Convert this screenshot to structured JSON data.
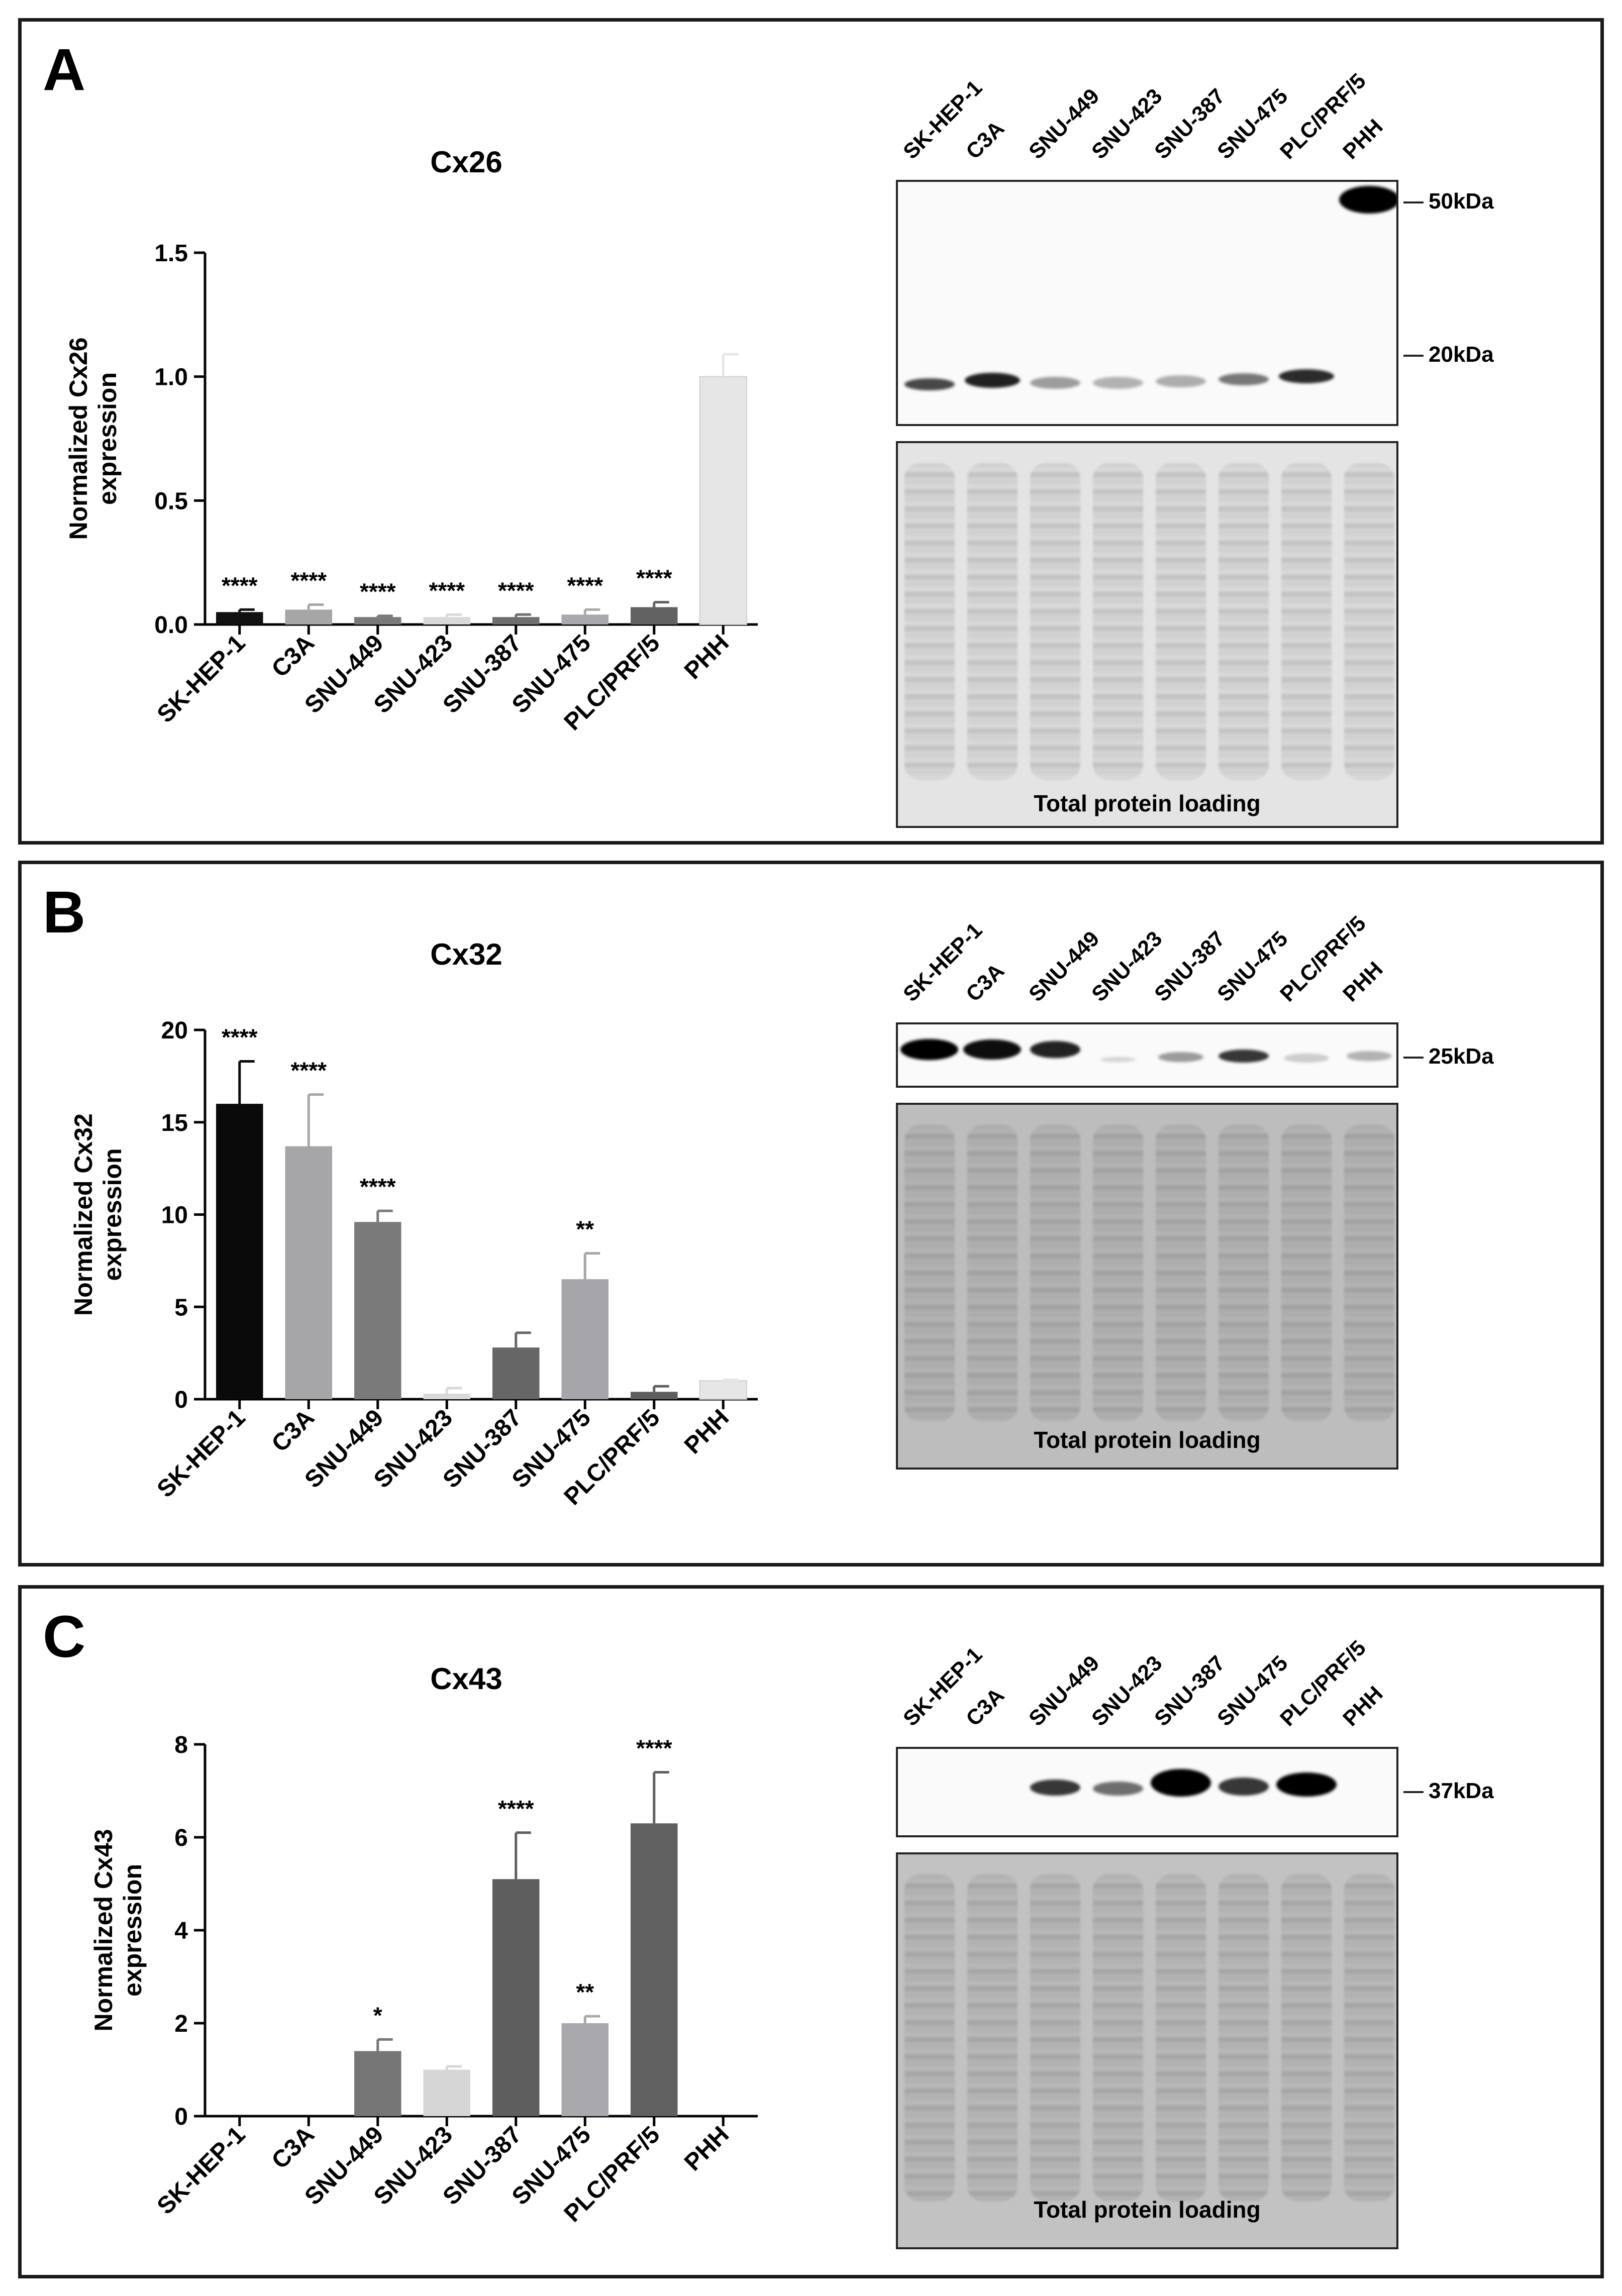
{
  "panels": [
    {
      "letter": "A",
      "blot": {
        "lanes": [
          "SK-HEP-1",
          "C3A",
          "SNU-449",
          "SNU-423",
          "SNU-387",
          "SNU-475",
          "PLC/PRF/5",
          "PHH"
        ],
        "markers": [
          "50kDa",
          "20kDa"
        ],
        "loading_label": "Total protein loading"
      }
    },
    {
      "letter": "B",
      "blot": {
        "lanes": [
          "SK-HEP-1",
          "C3A",
          "SNU-449",
          "SNU-423",
          "SNU-387",
          "SNU-475",
          "PLC/PRF/5",
          "PHH"
        ],
        "markers": [
          "25kDa"
        ],
        "loading_label": "Total protein loading"
      }
    },
    {
      "letter": "C",
      "blot": {
        "lanes": [
          "SK-HEP-1",
          "C3A",
          "SNU-449",
          "SNU-423",
          "SNU-387",
          "SNU-475",
          "PLC/PRF/5",
          "PHH"
        ],
        "markers": [
          "37kDa"
        ],
        "loading_label": "Total protein loading"
      }
    }
  ],
  "chart_data": [
    {
      "type": "bar",
      "title": "Cx26",
      "ylabel": [
        "Normalized Cx26",
        "expression"
      ],
      "xlabel": "",
      "categories": [
        "SK-HEP-1",
        "C3A",
        "SNU-449",
        "SNU-423",
        "SNU-387",
        "SNU-475",
        "PLC/PRF/5",
        "PHH"
      ],
      "values": [
        0.05,
        0.06,
        0.03,
        0.03,
        0.03,
        0.04,
        0.07,
        1.0
      ],
      "errors": [
        0.01,
        0.02,
        0.005,
        0.01,
        0.01,
        0.02,
        0.02,
        0.09
      ],
      "significance": [
        "****",
        "****",
        "****",
        "****",
        "****",
        "****",
        "****",
        ""
      ],
      "colors": [
        "#111111",
        "#a6a6a6",
        "#7a7a7a",
        "#d9d9d9",
        "#6e6e6e",
        "#a9a9ad",
        "#626262",
        "#e6e6e6"
      ],
      "ylim": [
        0,
        1.5
      ],
      "yticks": [
        "0.0",
        "0.5",
        "1.0",
        "1.5"
      ]
    },
    {
      "type": "bar",
      "title": "Cx32",
      "ylabel": [
        "Normalized Cx32",
        "expression"
      ],
      "xlabel": "",
      "categories": [
        "SK-HEP-1",
        "C3A",
        "SNU-449",
        "SNU-423",
        "SNU-387",
        "SNU-475",
        "PLC/PRF/5",
        "PHH"
      ],
      "values": [
        16.0,
        13.7,
        9.6,
        0.3,
        2.8,
        6.5,
        0.4,
        1.0
      ],
      "errors": [
        2.3,
        2.8,
        0.6,
        0.3,
        0.8,
        1.4,
        0.3,
        0.05
      ],
      "significance": [
        "****",
        "****",
        "****",
        "",
        "",
        "**",
        "",
        ""
      ],
      "colors": [
        "#0a0a0a",
        "#a6a6a9",
        "#7a7a7a",
        "#d9d9d9",
        "#666666",
        "#a6a6aa",
        "#5e5e5e",
        "#e6e6e6"
      ],
      "ylim": [
        0,
        20
      ],
      "yticks": [
        "0",
        "5",
        "10",
        "15",
        "20"
      ]
    },
    {
      "type": "bar",
      "title": "Cx43",
      "ylabel": [
        "Normalized Cx43",
        "expression"
      ],
      "xlabel": "",
      "categories": [
        "SK-HEP-1",
        "C3A",
        "SNU-449",
        "SNU-423",
        "SNU-387",
        "SNU-475",
        "PLC/PRF/5",
        "PHH"
      ],
      "values": [
        0,
        0,
        1.4,
        1.0,
        5.1,
        2.0,
        6.3,
        0
      ],
      "errors": [
        0,
        0,
        0.25,
        0.07,
        1.0,
        0.15,
        1.1,
        0
      ],
      "significance": [
        "",
        "",
        "*",
        "",
        "****",
        "**",
        "****",
        ""
      ],
      "colors": [
        "#111111",
        "#a6a6a6",
        "#767676",
        "#d6d6d6",
        "#5e5e5e",
        "#a9a9ad",
        "#606060",
        "#e6e6e6"
      ],
      "ylim": [
        0,
        8
      ],
      "yticks": [
        "0",
        "2",
        "4",
        "6",
        "8"
      ]
    }
  ]
}
